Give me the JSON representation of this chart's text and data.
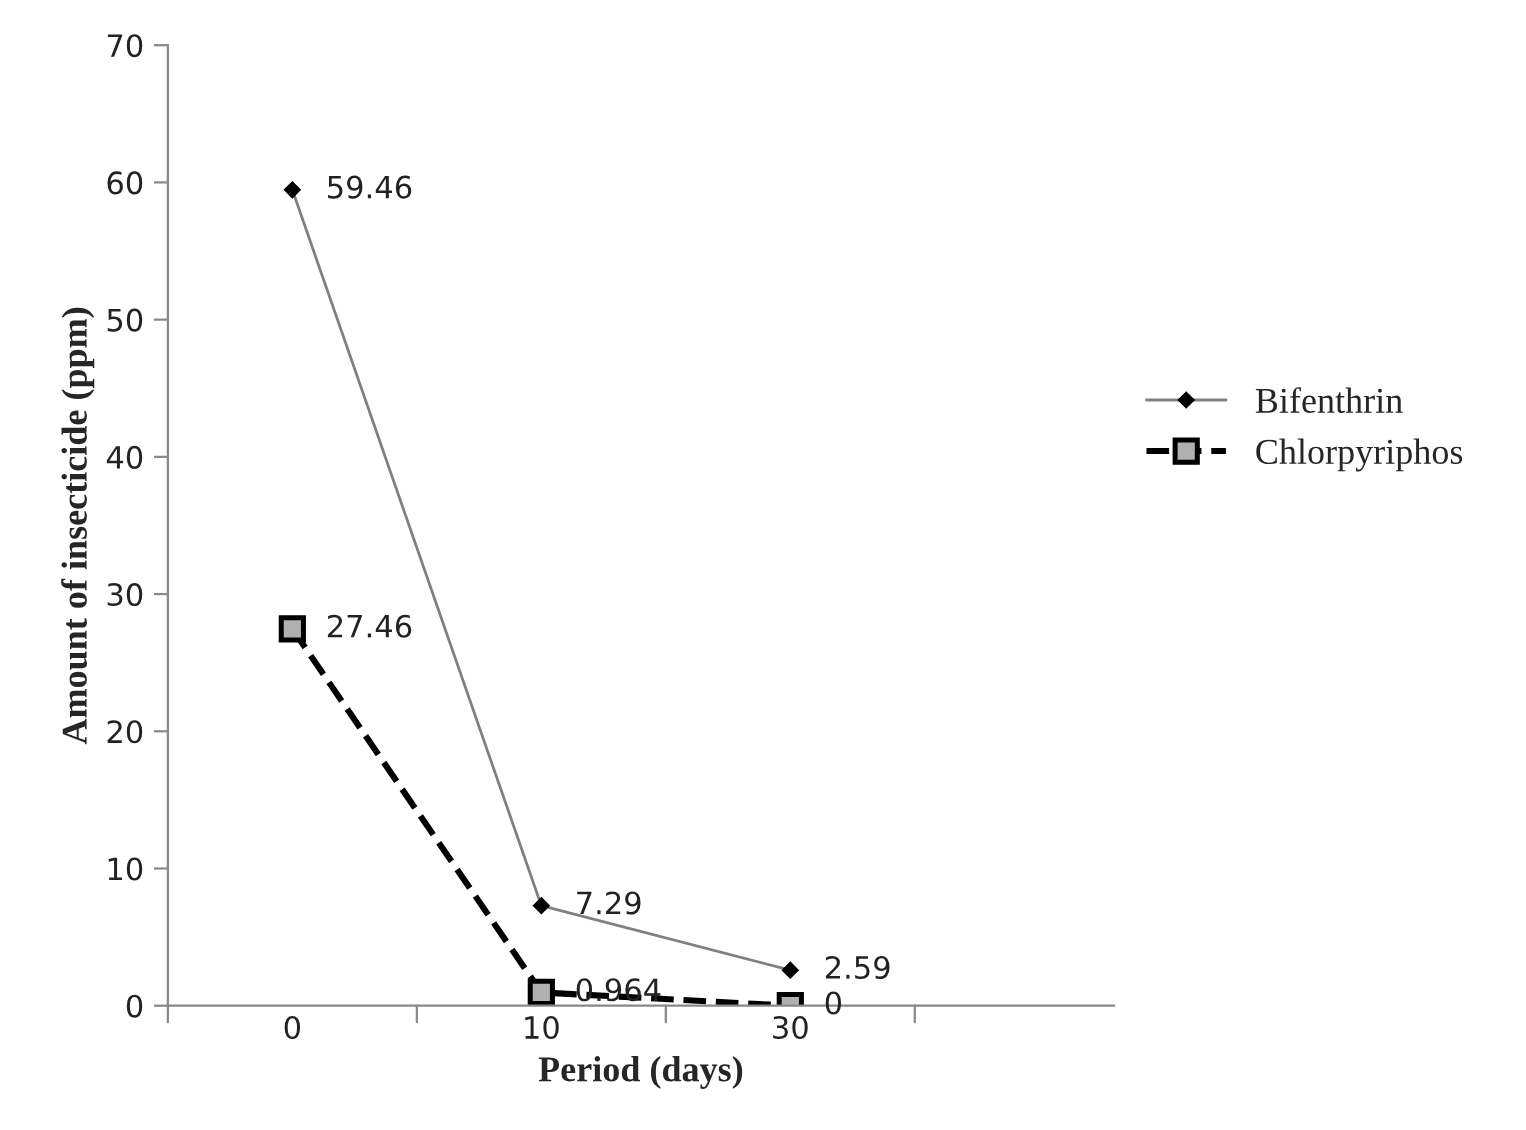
{
  "chart_data": {
    "type": "line",
    "xlabel": "Period (days)",
    "ylabel": "Amount of insecticide (ppm)",
    "categories": [
      "0",
      "10",
      "30"
    ],
    "series": [
      {
        "name": "Bifenthrin",
        "color": "#808080",
        "values": [
          59.46,
          7.29,
          2.59
        ],
        "marker": "diamond",
        "line_style": "solid"
      },
      {
        "name": "Chlorpyriphos",
        "color": "#000000",
        "values": [
          27.46,
          0.964,
          0
        ],
        "marker": "square",
        "line_style": "dashed"
      }
    ],
    "ylim": [
      0,
      70
    ],
    "yticks": [
      0,
      10,
      20,
      30,
      40,
      50,
      60,
      70
    ],
    "data_labels": true,
    "grid": false,
    "legend": "right"
  }
}
